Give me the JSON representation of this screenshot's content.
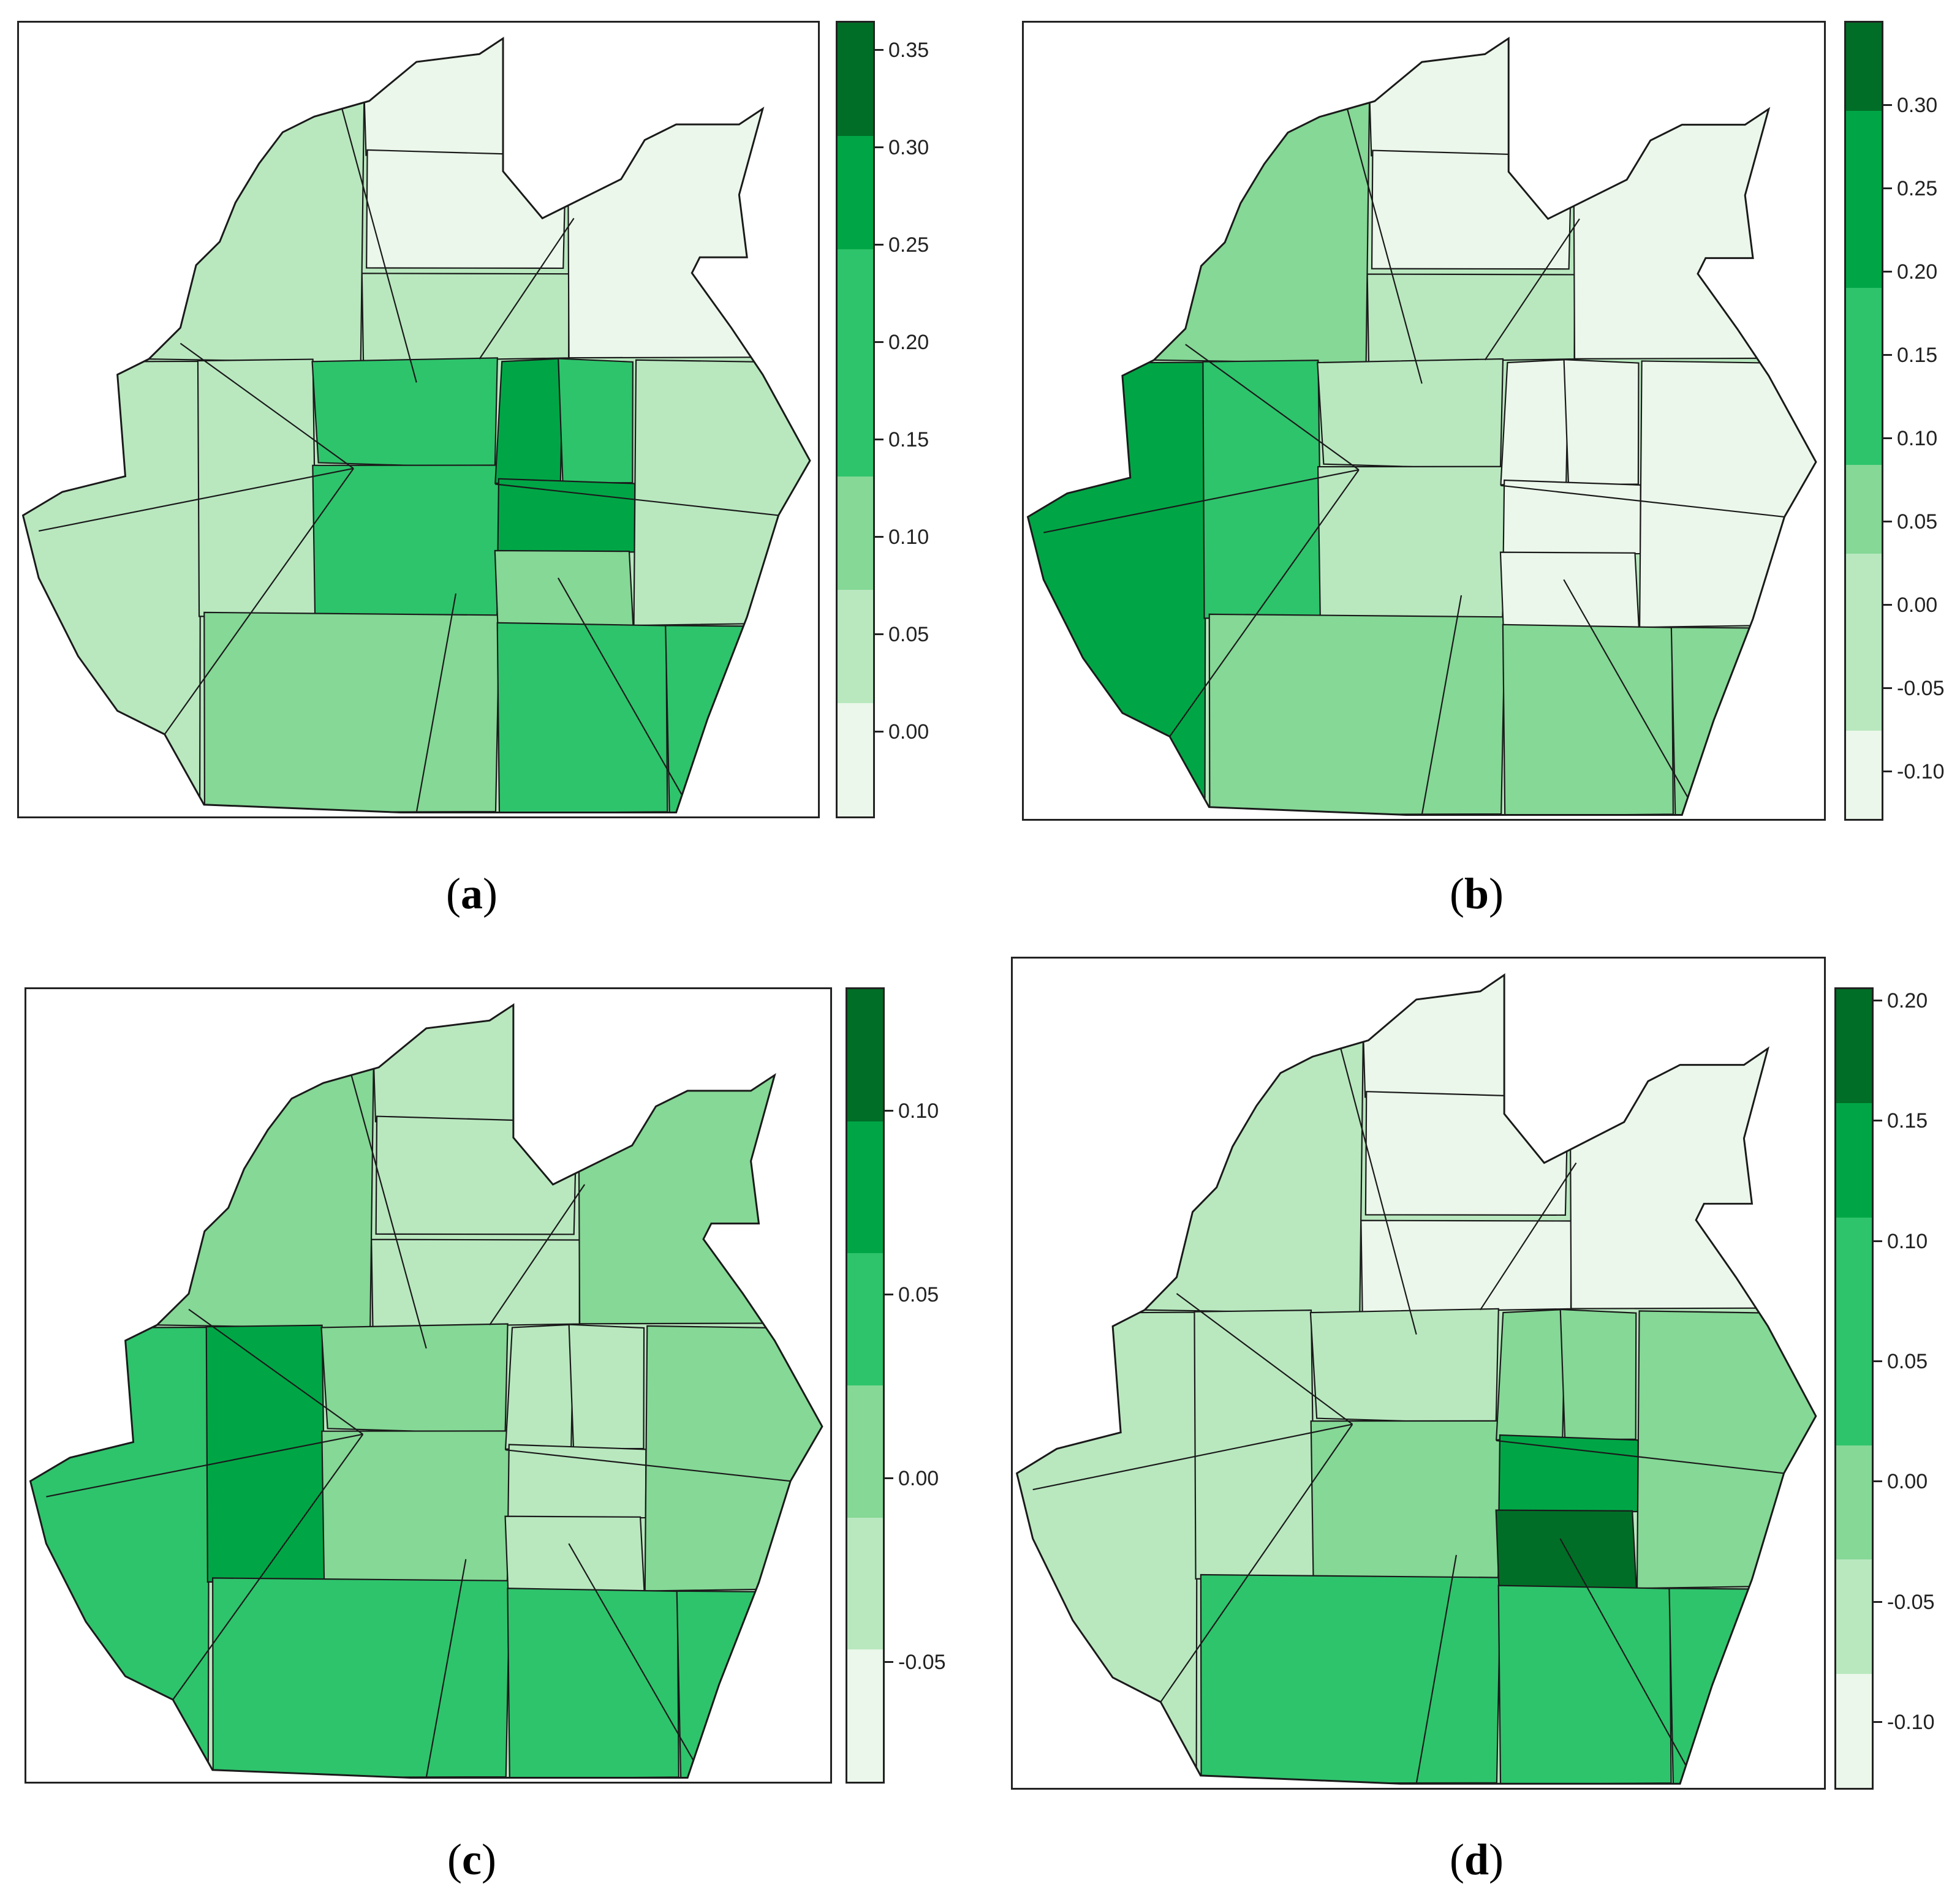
{
  "palette": [
    "#ebf7ea",
    "#b9e8bf",
    "#85d896",
    "#2ec46c",
    "#00a646",
    "#006e27"
  ],
  "panels": [
    {
      "id": "a",
      "caption_open": "(",
      "caption_letter": "a",
      "caption_close": ")",
      "legend_ticks": [
        "0.35",
        "0.30",
        "0.25",
        "0.20",
        "0.15",
        "0.10",
        "0.05",
        "0.00"
      ],
      "legend_steps": 7,
      "pattern": "center"
    },
    {
      "id": "b",
      "caption_open": "(",
      "caption_letter": "b",
      "caption_close": ")",
      "legend_ticks": [
        "0.30",
        "0.25",
        "0.20",
        "0.15",
        "0.10",
        "0.05",
        "0.00",
        "-0.05",
        "-0.10"
      ],
      "legend_steps": 9,
      "pattern": "west"
    },
    {
      "id": "c",
      "caption_open": "(",
      "caption_letter": "c",
      "caption_close": ")",
      "legend_ticks": [
        "0.10",
        "0.05",
        "0.00",
        "-0.05"
      ],
      "legend_steps": 6,
      "pattern": "west-mid"
    },
    {
      "id": "d",
      "caption_open": "(",
      "caption_letter": "d",
      "caption_close": ")",
      "legend_ticks": [
        "0.20",
        "0.15",
        "0.10",
        "0.05",
        "0.00",
        "-0.05",
        "-0.10"
      ],
      "legend_steps": 7,
      "pattern": "southeast"
    }
  ]
}
